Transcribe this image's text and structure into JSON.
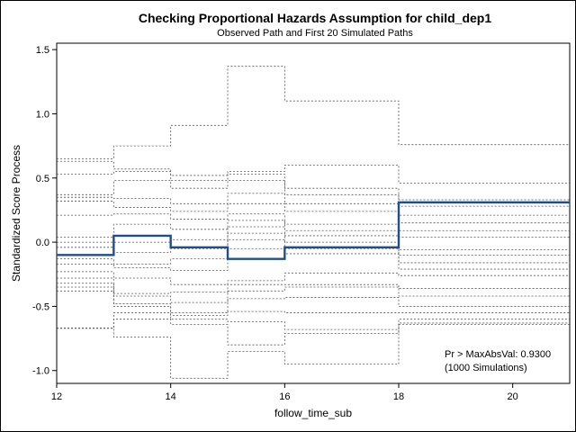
{
  "chart_data": {
    "type": "line",
    "title": "Checking Proportional Hazards Assumption for child_dep1",
    "subtitle": "Observed Path and First 20 Simulated Paths",
    "xlabel": "follow_time_sub",
    "ylabel": "Standardized Score Process",
    "xlim": [
      12,
      21
    ],
    "ylim": [
      -1.1,
      1.55
    ],
    "xticks": [
      12,
      14,
      16,
      18,
      20
    ],
    "xtick_labels": [
      "12",
      "14",
      "16",
      "18",
      "20"
    ],
    "yticks": [
      -1.0,
      -0.5,
      0.0,
      0.5,
      1.0,
      1.5
    ],
    "ytick_labels": [
      "-1.0",
      "-0.5",
      "0.0",
      "0.5",
      "1.0",
      "1.5"
    ],
    "step_x": [
      12,
      13,
      14,
      15,
      16,
      18,
      21
    ],
    "observed": {
      "values": [
        -0.1,
        0.05,
        -0.04,
        -0.13,
        -0.04,
        0.31
      ],
      "color": "#1f4e8c"
    },
    "simulated_color": "#555555",
    "simulated": [
      [
        0.65,
        0.75,
        0.91,
        1.37,
        1.1,
        0.76
      ],
      [
        0.63,
        0.57,
        0.52,
        0.55,
        0.6,
        0.46
      ],
      [
        0.53,
        0.55,
        0.48,
        0.53,
        0.42,
        0.33
      ],
      [
        0.37,
        0.48,
        0.42,
        0.48,
        0.37,
        0.28
      ],
      [
        0.35,
        0.34,
        0.3,
        0.38,
        0.3,
        0.21
      ],
      [
        0.32,
        0.27,
        0.24,
        0.3,
        0.24,
        0.15
      ],
      [
        0.21,
        0.22,
        0.18,
        0.22,
        0.14,
        0.09
      ],
      [
        0.04,
        0.14,
        0.1,
        0.17,
        0.09,
        0.04
      ],
      [
        0.0,
        0.0,
        0.02,
        0.12,
        0.05,
        -0.06
      ],
      [
        -0.04,
        -0.08,
        -0.05,
        0.07,
        0.0,
        -0.1
      ],
      [
        -0.13,
        -0.17,
        -0.13,
        0.02,
        -0.05,
        -0.16
      ],
      [
        -0.17,
        -0.2,
        -0.22,
        -0.05,
        -0.09,
        -0.21
      ],
      [
        -0.23,
        -0.28,
        -0.33,
        -0.3,
        -0.24,
        -0.26
      ],
      [
        -0.28,
        -0.4,
        -0.39,
        -0.33,
        -0.33,
        -0.36
      ],
      [
        -0.32,
        -0.42,
        -0.47,
        -0.38,
        -0.35,
        -0.42
      ],
      [
        -0.35,
        -0.48,
        -0.55,
        -0.44,
        -0.43,
        -0.5
      ],
      [
        -0.38,
        -0.5,
        -0.57,
        -0.54,
        -0.55,
        -0.55
      ],
      [
        -0.67,
        -0.55,
        -0.6,
        -0.62,
        -0.68,
        -0.6
      ],
      [
        -0.67,
        -0.6,
        -0.64,
        -0.8,
        -0.71,
        -0.63
      ],
      [
        -0.67,
        -0.74,
        -1.06,
        -0.85,
        -0.95,
        -0.64
      ]
    ],
    "annotation": [
      "Pr > MaxAbsVal: 0.9300",
      "(1000 Simulations)"
    ]
  }
}
